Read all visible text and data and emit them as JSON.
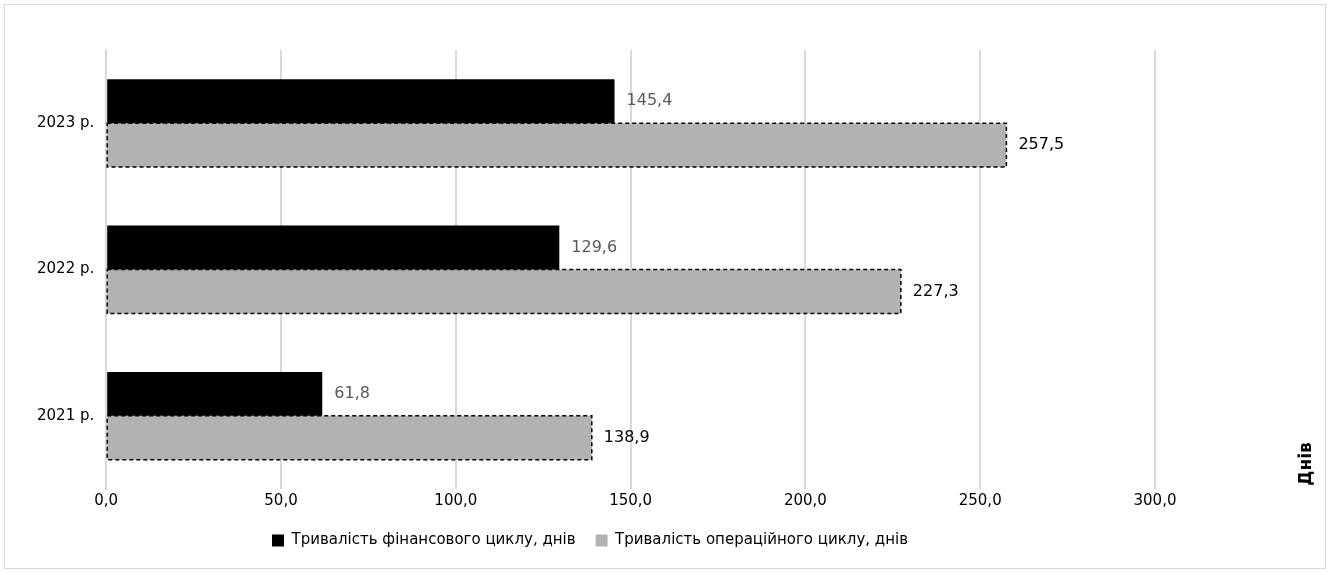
{
  "chart_data": {
    "type": "bar",
    "orientation": "horizontal",
    "annotations": [
      "Днів"
    ],
    "categories": [
      "2023 р.",
      "2022 р.",
      "2021 р."
    ],
    "series": [
      {
        "name": "Тривалість фінансового циклу, днів",
        "color": "#000000",
        "values": [
          145.4,
          129.6,
          61.8
        ],
        "value_labels": [
          "145,4",
          "129,6",
          "61,8"
        ]
      },
      {
        "name": "Тривалість операційного циклу, днів",
        "color": "#b2b2b2",
        "line_style": "dashed",
        "values": [
          257.5,
          227.3,
          138.9
        ],
        "value_labels": [
          "257,5",
          "227,3",
          "138,9"
        ]
      }
    ],
    "xlim": [
      0,
      300
    ],
    "xticks": [
      {
        "value": 0,
        "label": "0,0"
      },
      {
        "value": 50,
        "label": "50,0"
      },
      {
        "value": 100,
        "label": "100,0"
      },
      {
        "value": 150,
        "label": "150,0"
      },
      {
        "value": 200,
        "label": "200,0"
      },
      {
        "value": 250,
        "label": "250,0"
      },
      {
        "value": 300,
        "label": "300,0"
      }
    ],
    "grid": "x",
    "legend": "bottom"
  }
}
